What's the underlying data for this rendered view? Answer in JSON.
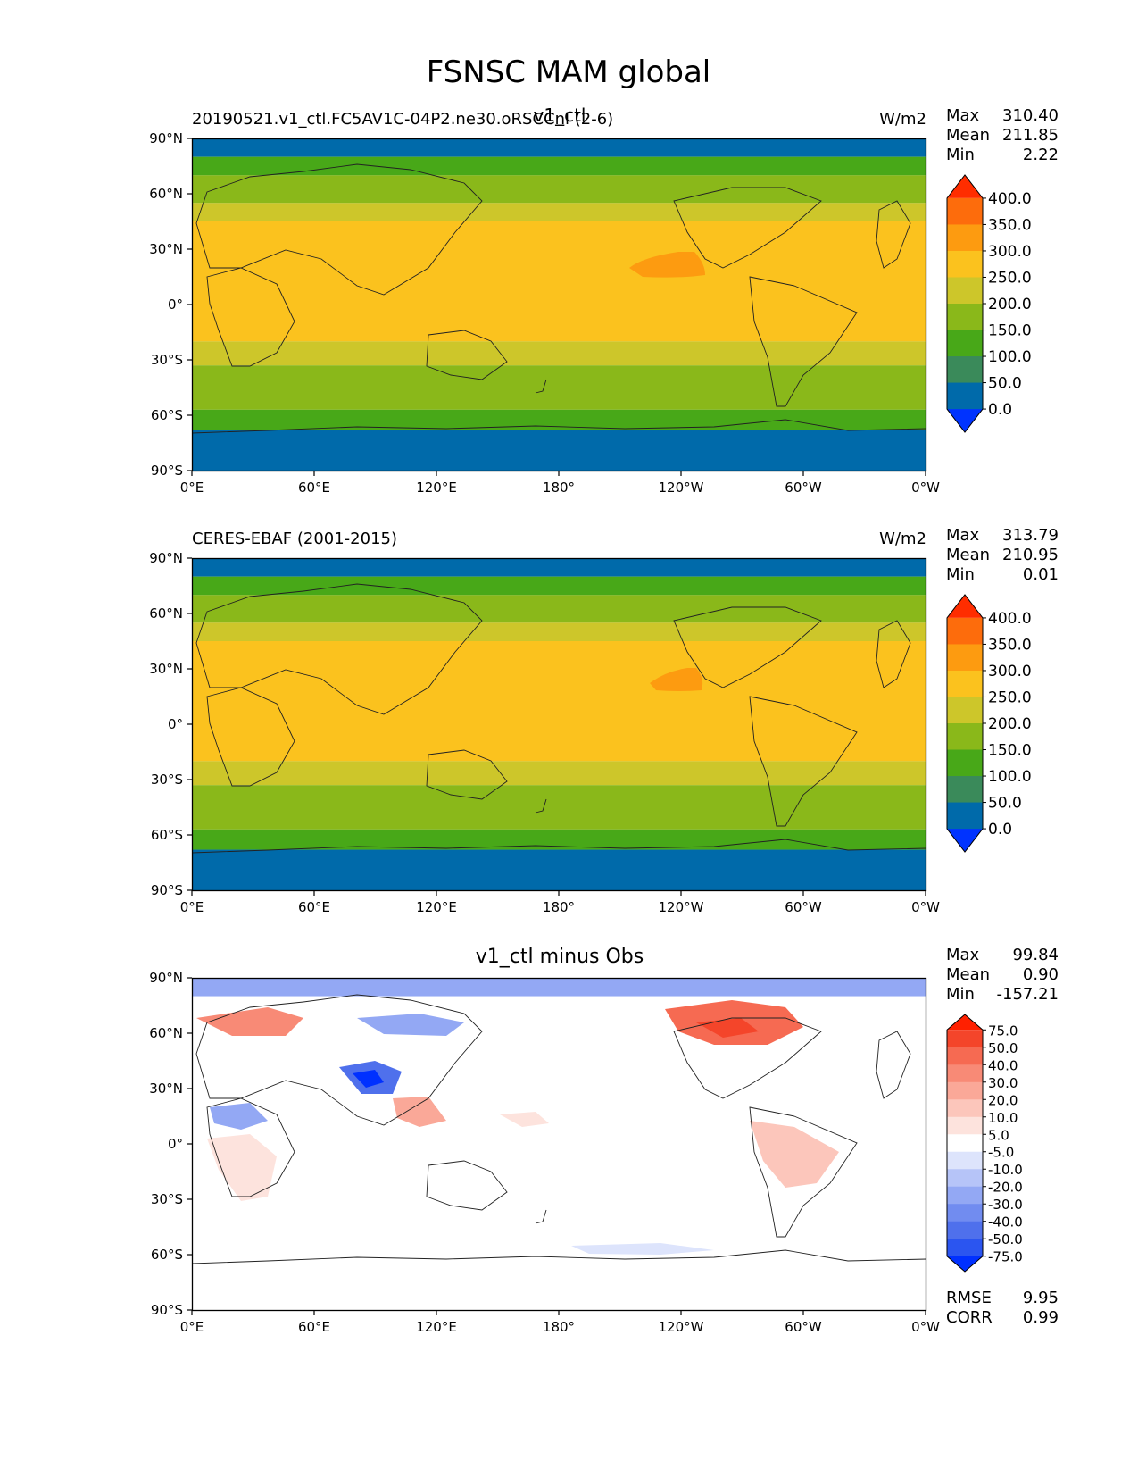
{
  "figure": {
    "title": "FSNSC MAM global"
  },
  "panels": [
    {
      "left_title": "20190521.v1_ctl.FC5AV1C-04P2.ne30.oRSCCnl (2-6)",
      "center_title": "v1_ctl",
      "units": "W/m2",
      "stats": {
        "max_label": "Max",
        "max": "310.40",
        "mean_label": "Mean",
        "mean": "211.85",
        "min_label": "Min",
        "min": "2.22"
      },
      "colorbar": "abs"
    },
    {
      "left_title": "CERES-EBAF (2001-2015)",
      "center_title": "",
      "units": "W/m2",
      "stats": {
        "max_label": "Max",
        "max": "313.79",
        "mean_label": "Mean",
        "mean": "210.95",
        "min_label": "Min",
        "min": "0.01"
      },
      "colorbar": "abs"
    },
    {
      "left_title": "",
      "center_title": "v1_ctl minus Obs",
      "units": "",
      "stats": {
        "max_label": "Max",
        "max": "99.84",
        "mean_label": "Mean",
        "mean": "0.90",
        "min_label": "Min",
        "min": "-157.21"
      },
      "colorbar": "diff",
      "extra": {
        "rmse_label": "RMSE",
        "rmse": "9.95",
        "corr_label": "CORR",
        "corr": "0.99"
      }
    }
  ],
  "chart_data": [
    {
      "type": "heatmap",
      "title": "v1_ctl",
      "subtitle": "20190521.v1_ctl.FC5AV1C-04P2.ne30.oRSCCnl (2-6)",
      "units": "W/m2",
      "x_ticks": [
        "0°E",
        "60°E",
        "120°E",
        "180°",
        "120°W",
        "60°W",
        "0°W"
      ],
      "y_ticks": [
        "90°N",
        "60°N",
        "30°N",
        "0°",
        "30°S",
        "60°S",
        "90°S"
      ],
      "xlim": [
        0,
        360
      ],
      "ylim": [
        -90,
        90
      ],
      "levels": [
        0,
        50,
        100,
        150,
        200,
        250,
        300,
        350,
        400
      ],
      "level_labels": [
        "0.0",
        "50.0",
        "100.0",
        "150.0",
        "200.0",
        "250.0",
        "300.0",
        "350.0",
        "400.0"
      ],
      "colors": [
        "#0033ff",
        "#006aaa",
        "#3a8a5a",
        "#48a818",
        "#8ab81a",
        "#cdc62a",
        "#fbc21e",
        "#fd9b10",
        "#fd6c0c",
        "#ff2d00"
      ],
      "zonal_bands": [
        {
          "lat_from": 90,
          "lat_to": 80,
          "value": 30
        },
        {
          "lat_from": 80,
          "lat_to": 70,
          "value": 120
        },
        {
          "lat_from": 70,
          "lat_to": 55,
          "value": 170
        },
        {
          "lat_from": 55,
          "lat_to": 45,
          "value": 220
        },
        {
          "lat_from": 45,
          "lat_to": -20,
          "value": 275
        },
        {
          "lat_from": -20,
          "lat_to": -33,
          "value": 225
        },
        {
          "lat_from": -33,
          "lat_to": -45,
          "value": 175
        },
        {
          "lat_from": -45,
          "lat_to": -57,
          "value": 160
        },
        {
          "lat_from": -57,
          "lat_to": -68,
          "value": 120
        },
        {
          "lat_from": -68,
          "lat_to": -90,
          "value": 30
        }
      ],
      "stats": {
        "max": 310.4,
        "mean": 211.85,
        "min": 2.22
      }
    },
    {
      "type": "heatmap",
      "subtitle": "CERES-EBAF (2001-2015)",
      "units": "W/m2",
      "x_ticks": [
        "0°E",
        "60°E",
        "120°E",
        "180°",
        "120°W",
        "60°W",
        "0°W"
      ],
      "y_ticks": [
        "90°N",
        "60°N",
        "30°N",
        "0°",
        "30°S",
        "60°S",
        "90°S"
      ],
      "xlim": [
        0,
        360
      ],
      "ylim": [
        -90,
        90
      ],
      "levels": [
        0,
        50,
        100,
        150,
        200,
        250,
        300,
        350,
        400
      ],
      "level_labels": [
        "0.0",
        "50.0",
        "100.0",
        "150.0",
        "200.0",
        "250.0",
        "300.0",
        "350.0",
        "400.0"
      ],
      "colors": [
        "#0033ff",
        "#006aaa",
        "#3a8a5a",
        "#48a818",
        "#8ab81a",
        "#cdc62a",
        "#fbc21e",
        "#fd9b10",
        "#fd6c0c",
        "#ff2d00"
      ],
      "zonal_bands": [
        {
          "lat_from": 90,
          "lat_to": 80,
          "value": 30
        },
        {
          "lat_from": 80,
          "lat_to": 70,
          "value": 120
        },
        {
          "lat_from": 70,
          "lat_to": 55,
          "value": 170
        },
        {
          "lat_from": 55,
          "lat_to": 45,
          "value": 220
        },
        {
          "lat_from": 45,
          "lat_to": -20,
          "value": 275
        },
        {
          "lat_from": -20,
          "lat_to": -33,
          "value": 225
        },
        {
          "lat_from": -33,
          "lat_to": -45,
          "value": 175
        },
        {
          "lat_from": -45,
          "lat_to": -57,
          "value": 160
        },
        {
          "lat_from": -57,
          "lat_to": -68,
          "value": 120
        },
        {
          "lat_from": -68,
          "lat_to": -90,
          "value": 30
        }
      ],
      "stats": {
        "max": 313.79,
        "mean": 210.95,
        "min": 0.01
      }
    },
    {
      "type": "heatmap",
      "title": "v1_ctl minus Obs",
      "x_ticks": [
        "0°E",
        "60°E",
        "120°E",
        "180°",
        "120°W",
        "60°W",
        "0°W"
      ],
      "y_ticks": [
        "90°N",
        "60°N",
        "30°N",
        "0°",
        "30°S",
        "60°S",
        "90°S"
      ],
      "xlim": [
        0,
        360
      ],
      "ylim": [
        -90,
        90
      ],
      "levels": [
        -75,
        -50,
        -40,
        -30,
        -20,
        -10,
        -5,
        5,
        10,
        20,
        30,
        40,
        50,
        75
      ],
      "level_labels": [
        "-75.0",
        "-50.0",
        "-40.0",
        "-30.0",
        "-20.0",
        "-10.0",
        "-5.0",
        "5.0",
        "10.0",
        "20.0",
        "30.0",
        "40.0",
        "50.0",
        "75.0"
      ],
      "colors": [
        "#0030ff",
        "#2b55f0",
        "#4f70ec",
        "#718cf0",
        "#93a8f4",
        "#b6c4f8",
        "#dde4fc",
        "#ffffff",
        "#fde3dd",
        "#fcc6bb",
        "#faa898",
        "#f88a76",
        "#f66a52",
        "#f4452a",
        "#ff2000"
      ],
      "zonal_bands": [
        {
          "lat_from": 90,
          "lat_to": 80,
          "value": -25
        },
        {
          "lat_from": 80,
          "lat_to": -90,
          "value": 0
        }
      ],
      "stats": {
        "max": 99.84,
        "mean": 0.9,
        "min": -157.21,
        "rmse": 9.95,
        "corr": 0.99
      }
    }
  ]
}
